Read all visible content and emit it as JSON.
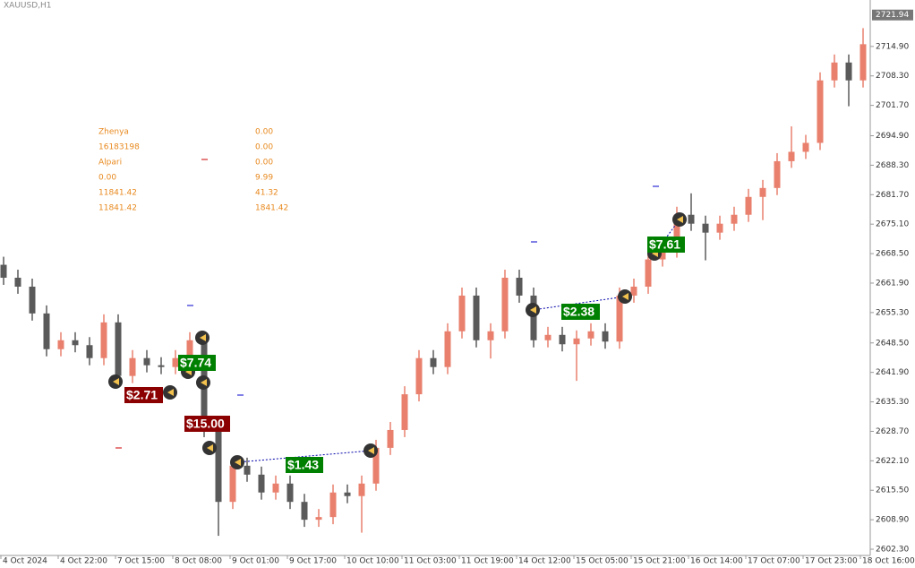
{
  "chart_data": {
    "type": "candlestick",
    "title": "XAUUSD,H1",
    "categories": [
      "4 Oct 2024",
      null,
      null,
      null,
      "4 Oct 22:00",
      null,
      null,
      null,
      "7 Oct 15:00",
      null,
      null,
      null,
      "8 Oct 08:00",
      null,
      null,
      null,
      "9 Oct 01:00",
      null,
      null,
      null,
      "9 Oct 17:00",
      null,
      null,
      null,
      "10 Oct 10:00",
      null,
      null,
      null,
      "11 Oct 03:00",
      null,
      null,
      null,
      "11 Oct 19:00",
      null,
      null,
      null,
      "14 Oct 12:00",
      null,
      null,
      null,
      "15 Oct 05:00",
      null,
      null,
      null,
      "15 Oct 21:00",
      null,
      null,
      null,
      "16 Oct 14:00",
      null,
      null,
      null,
      "17 Oct 07:00",
      null,
      null,
      null,
      "17 Oct 23:00",
      null,
      null,
      null,
      "18 Oct 16:00"
    ],
    "open": [
      2666.0,
      2663.1,
      2661.1,
      2655.1,
      2647.1,
      2649.1,
      2648.0,
      2645.1,
      2653.1,
      2641.1,
      2645.1,
      2643.5,
      2643.1,
      2645.1,
      2649.1,
      2629.0,
      2612.9,
      2621.0,
      2619.0,
      2615.0,
      2617.0,
      2612.9,
      2608.9,
      2609.5,
      2615.0,
      2614.2,
      2617.0,
      2625.0,
      2629.0,
      2637.0,
      2645.1,
      2643.1,
      2651.1,
      2659.1,
      2649.1,
      2651.1,
      2663.1,
      2659.1,
      2649.1,
      2650.3,
      2648.2,
      2649.5,
      2651.1,
      2648.8,
      2659.1,
      2661.1,
      2667.2,
      2669.2,
      2677.2,
      2675.2,
      2673.2,
      2675.2,
      2677.2,
      2681.2,
      2683.2,
      2689.2,
      2691.3,
      2693.3,
      2707.3,
      2711.3,
      2707.3
    ],
    "high": [
      2667.8,
      2664.9,
      2662.9,
      2656.9,
      2650.9,
      2650.9,
      2649.8,
      2654.9,
      2654.9,
      2646.9,
      2646.9,
      2645.3,
      2646.9,
      2650.9,
      2650.9,
      2630.8,
      2622.8,
      2622.8,
      2620.8,
      2618.8,
      2618.8,
      2614.7,
      2611.3,
      2616.8,
      2616.8,
      2618.8,
      2626.8,
      2630.8,
      2638.8,
      2646.9,
      2646.9,
      2652.9,
      2660.9,
      2660.9,
      2652.9,
      2664.9,
      2664.9,
      2660.9,
      2652.1,
      2652.1,
      2651.3,
      2652.9,
      2652.9,
      2660.9,
      2662.9,
      2669.0,
      2671.0,
      2679.0,
      2682.0,
      2677.0,
      2677.0,
      2679.0,
      2683.0,
      2685.0,
      2691.0,
      2697.0,
      2695.1,
      2709.1,
      2713.1,
      2713.1,
      2719.0
    ],
    "low": [
      2661.5,
      2659.5,
      2653.5,
      2645.5,
      2645.5,
      2646.4,
      2643.5,
      2643.5,
      2639.5,
      2639.5,
      2641.9,
      2641.5,
      2641.5,
      2643.5,
      2627.4,
      2605.3,
      2611.3,
      2617.4,
      2613.4,
      2613.4,
      2611.3,
      2607.3,
      2607.3,
      2607.9,
      2612.6,
      2606.0,
      2615.4,
      2623.4,
      2627.4,
      2635.4,
      2641.5,
      2641.5,
      2649.5,
      2647.5,
      2645.0,
      2649.5,
      2657.5,
      2647.5,
      2647.5,
      2646.6,
      2640.0,
      2647.9,
      2647.2,
      2647.2,
      2657.5,
      2659.5,
      2665.6,
      2667.6,
      2673.6,
      2667.0,
      2671.6,
      2673.6,
      2675.6,
      2676.0,
      2681.6,
      2687.7,
      2689.7,
      2691.7,
      2705.7,
      2701.5,
      2705.7
    ],
    "close": [
      2663.1,
      2661.1,
      2655.1,
      2647.1,
      2649.1,
      2648.0,
      2645.1,
      2653.1,
      2641.1,
      2645.1,
      2643.5,
      2643.1,
      2645.1,
      2649.1,
      2629.0,
      2612.9,
      2621.0,
      2619.0,
      2615.0,
      2617.0,
      2612.9,
      2608.9,
      2609.5,
      2615.0,
      2614.2,
      2617.0,
      2625.0,
      2629.0,
      2637.0,
      2645.1,
      2643.1,
      2651.1,
      2659.1,
      2649.1,
      2651.1,
      2663.1,
      2659.1,
      2649.1,
      2650.3,
      2648.2,
      2649.5,
      2651.1,
      2648.8,
      2659.1,
      2661.1,
      2667.2,
      2669.2,
      2677.2,
      2675.2,
      2673.2,
      2675.2,
      2677.2,
      2681.2,
      2683.2,
      2689.2,
      2691.3,
      2693.3,
      2707.3,
      2711.3,
      2707.3,
      2715.4
    ],
    "up_color": "#e9806e",
    "down_color": "#5a5a5a",
    "ylim": [
      2600.9,
      2725.3
    ],
    "yticks": [
      {
        "value": 2602.3,
        "label": "2602.30"
      },
      {
        "value": 2608.9,
        "label": "2608.90"
      },
      {
        "value": 2615.5,
        "label": "2615.50"
      },
      {
        "value": 2622.1,
        "label": "2622.10"
      },
      {
        "value": 2628.7,
        "label": "2628.70"
      },
      {
        "value": 2635.3,
        "label": "2635.30"
      },
      {
        "value": 2641.9,
        "label": "2641.90"
      },
      {
        "value": 2648.5,
        "label": "2648.50"
      },
      {
        "value": 2655.3,
        "label": "2655.30"
      },
      {
        "value": 2661.9,
        "label": "2661.90"
      },
      {
        "value": 2668.5,
        "label": "2668.50"
      },
      {
        "value": 2675.1,
        "label": "2675.10"
      },
      {
        "value": 2681.7,
        "label": "2681.70"
      },
      {
        "value": 2688.3,
        "label": "2688.30"
      },
      {
        "value": 2694.9,
        "label": "2694.90"
      },
      {
        "value": 2701.7,
        "label": "2701.70"
      },
      {
        "value": 2708.3,
        "label": "2708.30"
      },
      {
        "value": 2714.9,
        "label": "2714.90"
      }
    ],
    "last_price": 2721.94,
    "annotations": [
      {
        "text": "$2.71",
        "color": "#8b0000"
      },
      {
        "text": "$7.74",
        "color": "#008000"
      },
      {
        "text": "$15.00",
        "color": "#8b0000"
      },
      {
        "text": "$1.43",
        "color": "#008000"
      },
      {
        "text": "$2.38",
        "color": "#008000"
      },
      {
        "text": "$7.61",
        "color": "#008000"
      }
    ],
    "info_panel": [
      [
        "Zhenya",
        "0.00"
      ],
      [
        "16183198",
        "0.00"
      ],
      [
        "Alpari",
        "0.00"
      ],
      [
        "0.00",
        "9.99"
      ],
      [
        "11841.42",
        "41.32"
      ],
      [
        "11841.42",
        "1841.42"
      ]
    ]
  }
}
